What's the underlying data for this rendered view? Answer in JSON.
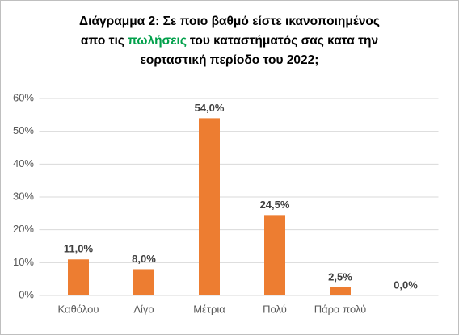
{
  "chart_data": {
    "type": "bar",
    "title_lines": [
      [
        "Διάγραμμα 2: Σε ποιο βαθμό είστε ικανοποιημένος"
      ],
      [
        "απο τις",
        "πωλήσεις",
        "του καταστήματός σας κατα την"
      ],
      [
        "εορταστική περίοδο του 2022;"
      ]
    ],
    "title_highlight": {
      "line": 1,
      "part": 1,
      "color": "#00a04a"
    },
    "categories": [
      "Καθόλου",
      "Λίγο",
      "Μέτρια",
      "Πολύ",
      "Πάρα πολύ",
      null
    ],
    "values": [
      11,
      8,
      54,
      24.5,
      2.5,
      0
    ],
    "value_labels": [
      "11,0%",
      "8,0%",
      "54,0%",
      "24,5%",
      "2,5%",
      "0,0%"
    ],
    "color": "#ed7d31",
    "ylim": [
      0,
      60
    ],
    "yticks": [
      {
        "value": 0,
        "label": "0%"
      },
      {
        "value": 10,
        "label": "10%"
      },
      {
        "value": 20,
        "label": "20%"
      },
      {
        "value": 30,
        "label": "30%"
      },
      {
        "value": 40,
        "label": "40%"
      },
      {
        "value": 50,
        "label": "50%"
      },
      {
        "value": 60,
        "label": "60%"
      }
    ],
    "grid": true
  }
}
